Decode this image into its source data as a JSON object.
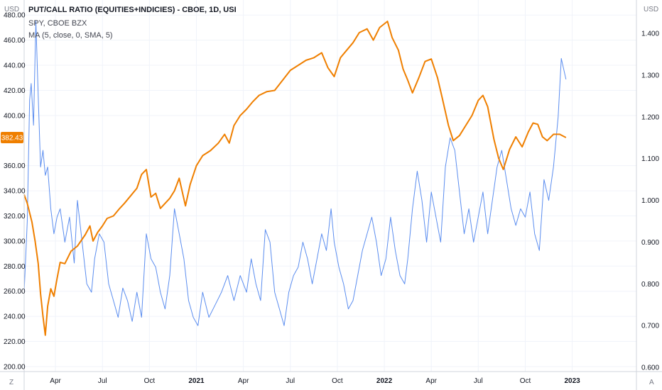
{
  "legend": {
    "title": "PUT/CALL RATIO (EQUITIES+INDICIES) - CBOE, 1D, USI",
    "symbol": "SPY, CBOE BZX",
    "ma": "MA (5, close, 0, SMA, 5)"
  },
  "axis_left_unit": "USD",
  "axis_right_unit": "USD",
  "corner_left": "Z",
  "corner_right": "A",
  "colors": {
    "spy": "#ef7f00",
    "ratio": "#5b8def",
    "badge": "#ef7f00",
    "grid": "#f0f3fa",
    "axis": "#d1d4dc"
  },
  "chart_data": {
    "type": "line",
    "x_labels": [
      {
        "label": "Apr",
        "t": 0.6,
        "bold": false
      },
      {
        "label": "Jul",
        "t": 3.6,
        "bold": false
      },
      {
        "label": "Oct",
        "t": 6.6,
        "bold": false
      },
      {
        "label": "2021",
        "t": 9.6,
        "bold": true
      },
      {
        "label": "Apr",
        "t": 12.6,
        "bold": false
      },
      {
        "label": "Jul",
        "t": 15.6,
        "bold": false
      },
      {
        "label": "Oct",
        "t": 18.6,
        "bold": false
      },
      {
        "label": "2022",
        "t": 21.6,
        "bold": true
      },
      {
        "label": "Apr",
        "t": 24.6,
        "bold": false
      },
      {
        "label": "Jul",
        "t": 27.6,
        "bold": false
      },
      {
        "label": "Oct",
        "t": 30.6,
        "bold": false
      },
      {
        "label": "2023",
        "t": 33.6,
        "bold": true
      }
    ],
    "x_range": [
      -1.4,
      37.7
    ],
    "left_axis": {
      "ticks": [
        "200.00",
        "220.00",
        "240.00",
        "260.00",
        "280.00",
        "300.00",
        "320.00",
        "340.00",
        "360.00",
        "400.00",
        "420.00",
        "440.00",
        "460.00",
        "480.00"
      ],
      "range": [
        196,
        492
      ]
    },
    "right_axis": {
      "ticks": [
        "0.600",
        "0.700",
        "0.800",
        "0.900",
        "1.000",
        "1.100",
        "1.200",
        "1.300",
        "1.400"
      ],
      "range": [
        0.59,
        1.48
      ]
    },
    "last_price_label": "382.43",
    "last_price": 382.43,
    "series": [
      {
        "axis": "left",
        "points": [
          [
            -1.4,
            337
          ],
          [
            -1.2,
            330
          ],
          [
            -0.9,
            315
          ],
          [
            -0.7,
            300
          ],
          [
            -0.5,
            282
          ],
          [
            -0.35,
            258
          ],
          [
            -0.2,
            240
          ],
          [
            -0.05,
            225
          ],
          [
            0.1,
            248
          ],
          [
            0.3,
            262
          ],
          [
            0.5,
            256
          ],
          [
            0.7,
            270
          ],
          [
            0.9,
            283
          ],
          [
            1.2,
            282
          ],
          [
            1.6,
            292
          ],
          [
            2.0,
            296
          ],
          [
            2.5,
            305
          ],
          [
            2.8,
            312
          ],
          [
            3.0,
            300
          ],
          [
            3.3,
            307
          ],
          [
            3.6,
            312
          ],
          [
            3.9,
            318
          ],
          [
            4.3,
            320
          ],
          [
            4.7,
            326
          ],
          [
            5.0,
            330
          ],
          [
            5.4,
            336
          ],
          [
            5.8,
            342
          ],
          [
            6.1,
            353
          ],
          [
            6.4,
            357
          ],
          [
            6.7,
            335
          ],
          [
            7.0,
            338
          ],
          [
            7.3,
            326
          ],
          [
            7.6,
            330
          ],
          [
            7.9,
            334
          ],
          [
            8.2,
            340
          ],
          [
            8.5,
            350
          ],
          [
            8.9,
            328
          ],
          [
            9.2,
            345
          ],
          [
            9.6,
            360
          ],
          [
            10.0,
            368
          ],
          [
            10.5,
            372
          ],
          [
            11.0,
            378
          ],
          [
            11.4,
            385
          ],
          [
            11.7,
            378
          ],
          [
            12.0,
            392
          ],
          [
            12.4,
            400
          ],
          [
            12.8,
            405
          ],
          [
            13.2,
            411
          ],
          [
            13.6,
            416
          ],
          [
            14.1,
            419
          ],
          [
            14.6,
            420
          ],
          [
            15.1,
            428
          ],
          [
            15.6,
            436
          ],
          [
            16.1,
            440
          ],
          [
            16.6,
            444
          ],
          [
            17.1,
            446
          ],
          [
            17.6,
            450
          ],
          [
            18.0,
            438
          ],
          [
            18.4,
            431
          ],
          [
            18.8,
            446
          ],
          [
            19.2,
            452
          ],
          [
            19.6,
            458
          ],
          [
            20.0,
            466
          ],
          [
            20.5,
            469
          ],
          [
            20.9,
            460
          ],
          [
            21.3,
            470
          ],
          [
            21.8,
            475
          ],
          [
            22.1,
            462
          ],
          [
            22.5,
            452
          ],
          [
            22.8,
            437
          ],
          [
            23.1,
            428
          ],
          [
            23.4,
            418
          ],
          [
            23.8,
            430
          ],
          [
            24.2,
            443
          ],
          [
            24.6,
            445
          ],
          [
            25.0,
            430
          ],
          [
            25.3,
            414
          ],
          [
            25.7,
            392
          ],
          [
            26.0,
            380
          ],
          [
            26.4,
            384
          ],
          [
            26.8,
            392
          ],
          [
            27.2,
            400
          ],
          [
            27.6,
            412
          ],
          [
            27.9,
            416
          ],
          [
            28.2,
            407
          ],
          [
            28.6,
            381
          ],
          [
            28.9,
            366
          ],
          [
            29.2,
            357
          ],
          [
            29.6,
            373
          ],
          [
            30.0,
            383
          ],
          [
            30.4,
            375
          ],
          [
            30.8,
            387
          ],
          [
            31.1,
            394
          ],
          [
            31.4,
            393
          ],
          [
            31.7,
            383
          ],
          [
            32.0,
            380
          ],
          [
            32.4,
            385
          ],
          [
            32.8,
            385
          ],
          [
            33.2,
            382.43
          ]
        ]
      },
      {
        "axis": "right",
        "points": [
          [
            -1.4,
            0.78
          ],
          [
            -1.2,
            0.95
          ],
          [
            -1.05,
            1.24
          ],
          [
            -0.95,
            1.28
          ],
          [
            -0.8,
            1.18
          ],
          [
            -0.65,
            1.43
          ],
          [
            -0.5,
            1.25
          ],
          [
            -0.35,
            1.08
          ],
          [
            -0.2,
            1.12
          ],
          [
            -0.05,
            1.06
          ],
          [
            0.1,
            1.08
          ],
          [
            0.3,
            0.98
          ],
          [
            0.5,
            0.92
          ],
          [
            0.7,
            0.96
          ],
          [
            0.9,
            0.98
          ],
          [
            1.2,
            0.9
          ],
          [
            1.5,
            0.96
          ],
          [
            1.8,
            0.85
          ],
          [
            2.0,
            1.0
          ],
          [
            2.3,
            0.9
          ],
          [
            2.6,
            0.8
          ],
          [
            2.9,
            0.78
          ],
          [
            3.1,
            0.86
          ],
          [
            3.4,
            0.92
          ],
          [
            3.7,
            0.9
          ],
          [
            4.0,
            0.8
          ],
          [
            4.3,
            0.76
          ],
          [
            4.6,
            0.72
          ],
          [
            4.9,
            0.79
          ],
          [
            5.2,
            0.76
          ],
          [
            5.5,
            0.71
          ],
          [
            5.8,
            0.78
          ],
          [
            6.1,
            0.72
          ],
          [
            6.4,
            0.92
          ],
          [
            6.7,
            0.86
          ],
          [
            7.0,
            0.84
          ],
          [
            7.3,
            0.78
          ],
          [
            7.6,
            0.74
          ],
          [
            7.9,
            0.82
          ],
          [
            8.2,
            0.98
          ],
          [
            8.5,
            0.92
          ],
          [
            8.8,
            0.86
          ],
          [
            9.1,
            0.76
          ],
          [
            9.4,
            0.72
          ],
          [
            9.7,
            0.7
          ],
          [
            10.0,
            0.78
          ],
          [
            10.4,
            0.72
          ],
          [
            10.8,
            0.75
          ],
          [
            11.2,
            0.78
          ],
          [
            11.6,
            0.82
          ],
          [
            12.0,
            0.76
          ],
          [
            12.4,
            0.82
          ],
          [
            12.8,
            0.78
          ],
          [
            13.1,
            0.86
          ],
          [
            13.4,
            0.8
          ],
          [
            13.7,
            0.76
          ],
          [
            14.0,
            0.93
          ],
          [
            14.3,
            0.9
          ],
          [
            14.6,
            0.78
          ],
          [
            14.9,
            0.74
          ],
          [
            15.2,
            0.7
          ],
          [
            15.5,
            0.78
          ],
          [
            15.8,
            0.82
          ],
          [
            16.1,
            0.84
          ],
          [
            16.4,
            0.9
          ],
          [
            16.7,
            0.86
          ],
          [
            17.0,
            0.8
          ],
          [
            17.3,
            0.86
          ],
          [
            17.6,
            0.92
          ],
          [
            17.9,
            0.88
          ],
          [
            18.2,
            0.98
          ],
          [
            18.4,
            0.9
          ],
          [
            18.7,
            0.84
          ],
          [
            19.0,
            0.8
          ],
          [
            19.3,
            0.74
          ],
          [
            19.6,
            0.76
          ],
          [
            19.9,
            0.82
          ],
          [
            20.2,
            0.88
          ],
          [
            20.5,
            0.92
          ],
          [
            20.8,
            0.96
          ],
          [
            21.1,
            0.9
          ],
          [
            21.4,
            0.82
          ],
          [
            21.7,
            0.86
          ],
          [
            22.0,
            0.96
          ],
          [
            22.3,
            0.88
          ],
          [
            22.6,
            0.82
          ],
          [
            22.9,
            0.8
          ],
          [
            23.1,
            0.86
          ],
          [
            23.4,
            0.98
          ],
          [
            23.7,
            1.07
          ],
          [
            24.0,
            1.0
          ],
          [
            24.3,
            0.9
          ],
          [
            24.6,
            1.02
          ],
          [
            24.9,
            0.96
          ],
          [
            25.2,
            0.9
          ],
          [
            25.5,
            1.08
          ],
          [
            25.8,
            1.15
          ],
          [
            26.1,
            1.12
          ],
          [
            26.4,
            1.02
          ],
          [
            26.7,
            0.92
          ],
          [
            27.0,
            0.98
          ],
          [
            27.3,
            0.9
          ],
          [
            27.6,
            0.96
          ],
          [
            27.9,
            1.02
          ],
          [
            28.2,
            0.92
          ],
          [
            28.5,
            1.0
          ],
          [
            28.8,
            1.08
          ],
          [
            29.1,
            1.12
          ],
          [
            29.4,
            1.05
          ],
          [
            29.7,
            0.98
          ],
          [
            30.0,
            0.94
          ],
          [
            30.3,
            0.98
          ],
          [
            30.6,
            0.96
          ],
          [
            30.9,
            1.02
          ],
          [
            31.2,
            0.92
          ],
          [
            31.5,
            0.88
          ],
          [
            31.8,
            1.05
          ],
          [
            32.1,
            1.0
          ],
          [
            32.4,
            1.08
          ],
          [
            32.7,
            1.2
          ],
          [
            32.9,
            1.34
          ],
          [
            33.2,
            1.29
          ]
        ]
      }
    ]
  }
}
